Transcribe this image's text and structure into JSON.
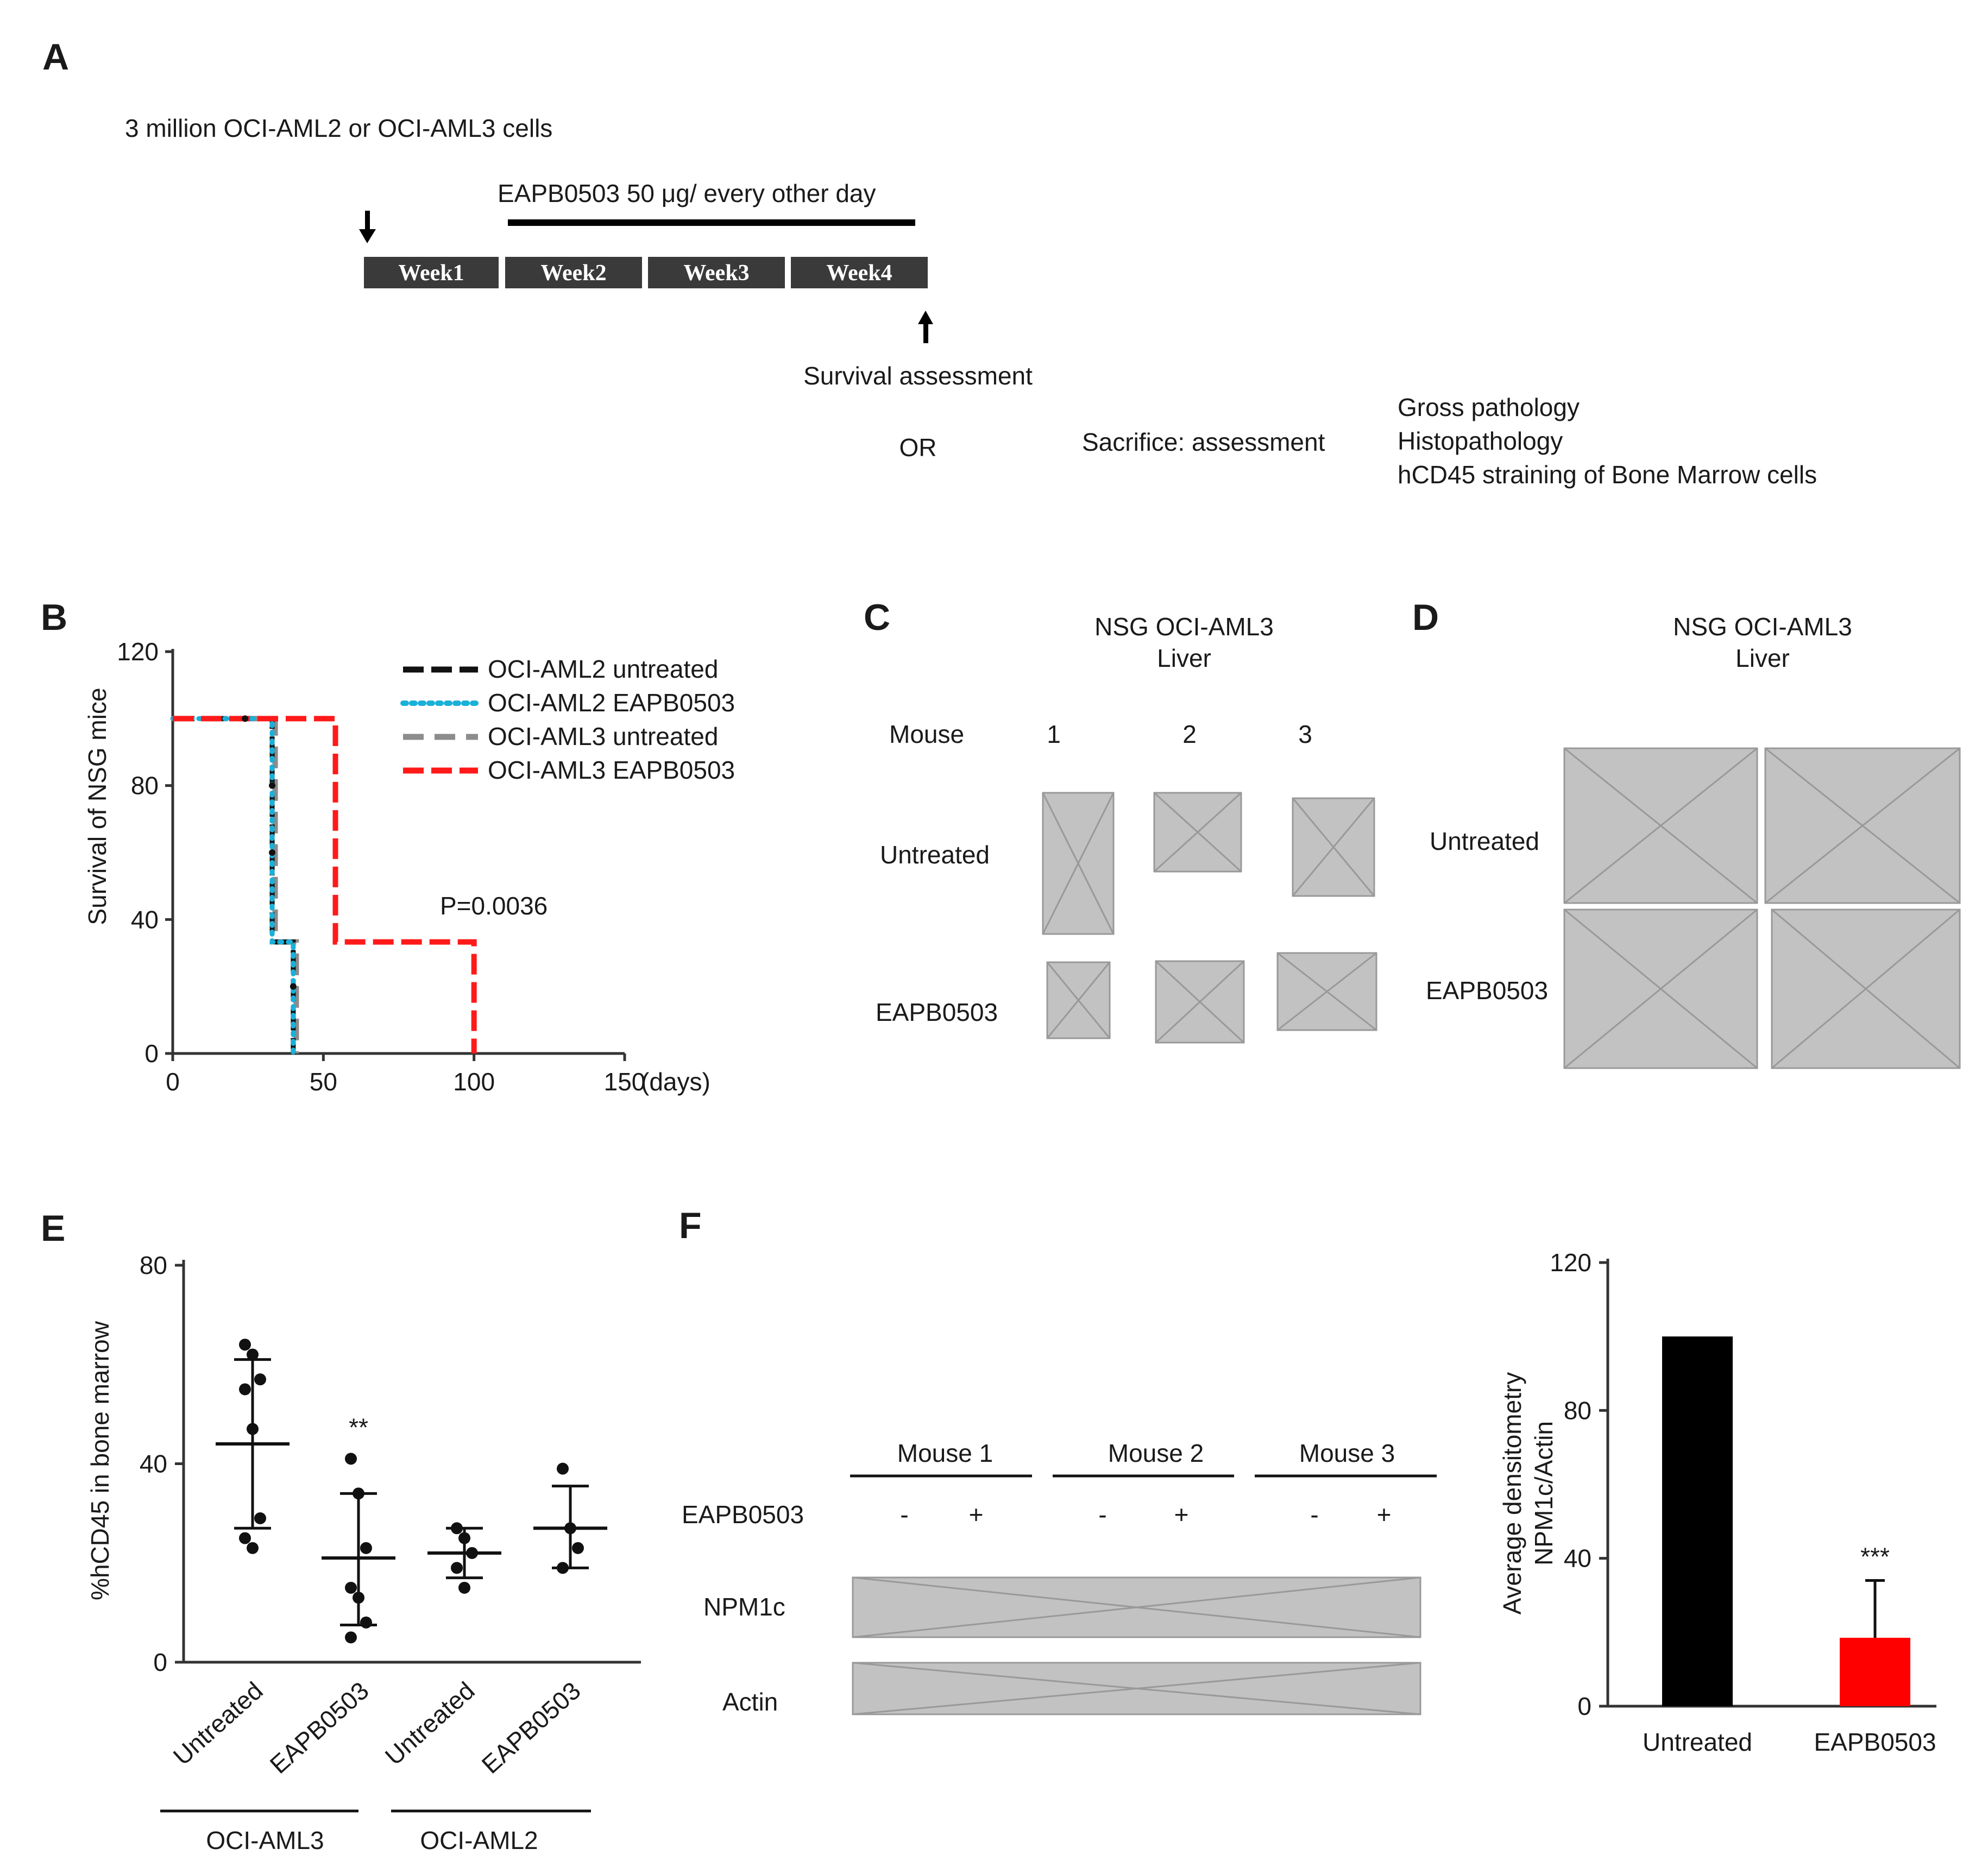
{
  "figure": {
    "panels": {
      "a": "A",
      "b": "B",
      "c": "C",
      "d": "D",
      "e": "E",
      "f": "F"
    }
  },
  "panelA": {
    "cells_text": "3 million OCI-AML2 or OCI-AML3 cells",
    "treatment_text": "EAPB0503 50 μg/ every other day",
    "weeks": [
      "Week1",
      "Week2",
      "Week3",
      "Week4"
    ],
    "survival_text": "Survival assessment",
    "or_text": "OR",
    "sacrifice_text": "Sacrifice: assessment",
    "assessments": [
      "Gross pathology",
      "Histopathology",
      "hCD45 straining of Bone Marrow cells"
    ]
  },
  "panelB": {
    "p_value": "P=0.0036",
    "day_unit": "(days)",
    "chart_data": {
      "type": "line",
      "ylabel": "Survival of NSG mice",
      "xlabel": "(days)",
      "xlim": [
        0,
        150
      ],
      "ylim": [
        0,
        120
      ],
      "x_ticks": [
        "0",
        "50",
        "100",
        "150"
      ],
      "y_ticks": [
        "0",
        "40",
        "80",
        "120"
      ],
      "legend_position": "top-right",
      "series": [
        {
          "name": "OCI-AML2 untreated",
          "color": "#111111",
          "style": "dashed",
          "x": [
            0,
            33,
            33,
            40,
            40
          ],
          "y": [
            100,
            100,
            33.3,
            33.3,
            0
          ],
          "censored": [
            {
              "x": 24,
              "y": 100
            },
            {
              "x": 33,
              "y": 80
            },
            {
              "x": 33,
              "y": 60
            },
            {
              "x": 40,
              "y": 20
            }
          ]
        },
        {
          "name": "OCI-AML2 EAPB0503",
          "color": "#1ab0d8",
          "style": "dotted",
          "x": [
            0,
            33,
            33,
            40,
            40
          ],
          "y": [
            100,
            100,
            33.3,
            33.3,
            0
          ]
        },
        {
          "name": "OCI-AML3 untreated",
          "color": "#8c8c8c",
          "style": "dashed",
          "x": [
            0,
            34,
            34,
            41,
            41
          ],
          "y": [
            100,
            100,
            33.3,
            33.3,
            0
          ]
        },
        {
          "name": "OCI-AML3 EAPB0503",
          "color": "#ff1a1a",
          "style": "dashed",
          "x": [
            0,
            54,
            54,
            100,
            100
          ],
          "y": [
            100,
            100,
            33.3,
            33.3,
            0
          ]
        }
      ]
    }
  },
  "panelC": {
    "title": "NSG OCI-AML3",
    "subtitle": "Liver",
    "mouse_label": "Mouse",
    "mice": [
      "1",
      "2",
      "3"
    ],
    "rows": [
      "Untreated",
      "EAPB0503"
    ]
  },
  "panelD": {
    "title": "NSG OCI-AML3",
    "subtitle": "Liver",
    "rows": [
      "Untreated",
      "EAPB0503"
    ]
  },
  "panelE": {
    "groups": [
      "OCI-AML3",
      "OCI-AML2"
    ],
    "chart_data": {
      "type": "scatter",
      "ylabel": "%hCD45 in bone marrow",
      "ylim": [
        0,
        80
      ],
      "y_ticks": [
        "0",
        "40",
        "80"
      ],
      "categories": [
        "Untreated",
        "EAPB0503",
        "Untreated",
        "EAPB0503"
      ],
      "annotations": [
        {
          "category": 1,
          "text": "**"
        }
      ],
      "series": [
        {
          "name": "OCI-AML3 Untreated",
          "mean": 44,
          "upper": 61,
          "lower": 27,
          "points": [
            64,
            62,
            57,
            55,
            47,
            29,
            25,
            23
          ]
        },
        {
          "name": "OCI-AML3 EAPB0503",
          "mean": 21,
          "upper": 34,
          "lower": 7.5,
          "points": [
            41,
            34,
            23,
            15,
            13,
            8,
            5
          ]
        },
        {
          "name": "OCI-AML2 Untreated",
          "mean": 22,
          "upper": 27,
          "lower": 17,
          "points": [
            27,
            25,
            22,
            19,
            15
          ]
        },
        {
          "name": "OCI-AML2 EAPB0503",
          "mean": 27,
          "upper": 35.5,
          "lower": 19,
          "points": [
            39,
            27,
            23,
            19
          ]
        }
      ]
    }
  },
  "panelF": {
    "blot": {
      "mice": [
        "Mouse 1",
        "Mouse 2",
        "Mouse 3"
      ],
      "treatment_label": "EAPB0503",
      "signs": [
        "-",
        "+",
        "-",
        "+",
        "-",
        "+"
      ],
      "rows": [
        "NPM1c",
        "Actin"
      ]
    },
    "chart_data": {
      "type": "bar",
      "ylabel": "Average densitometry NPM1c/Actin",
      "ylabel_lines": [
        "Average densitometry",
        "NPM1c/Actin"
      ],
      "categories": [
        "Untreated",
        "EAPB0503"
      ],
      "values": [
        100,
        18.5
      ],
      "errors": [
        0,
        15.5
      ],
      "colors": [
        "#000000",
        "#ff0000"
      ],
      "ylim": [
        0,
        120
      ],
      "y_ticks": [
        "0",
        "40",
        "80",
        "120"
      ],
      "annotations": [
        {
          "category": 1,
          "text": "***"
        }
      ]
    }
  }
}
